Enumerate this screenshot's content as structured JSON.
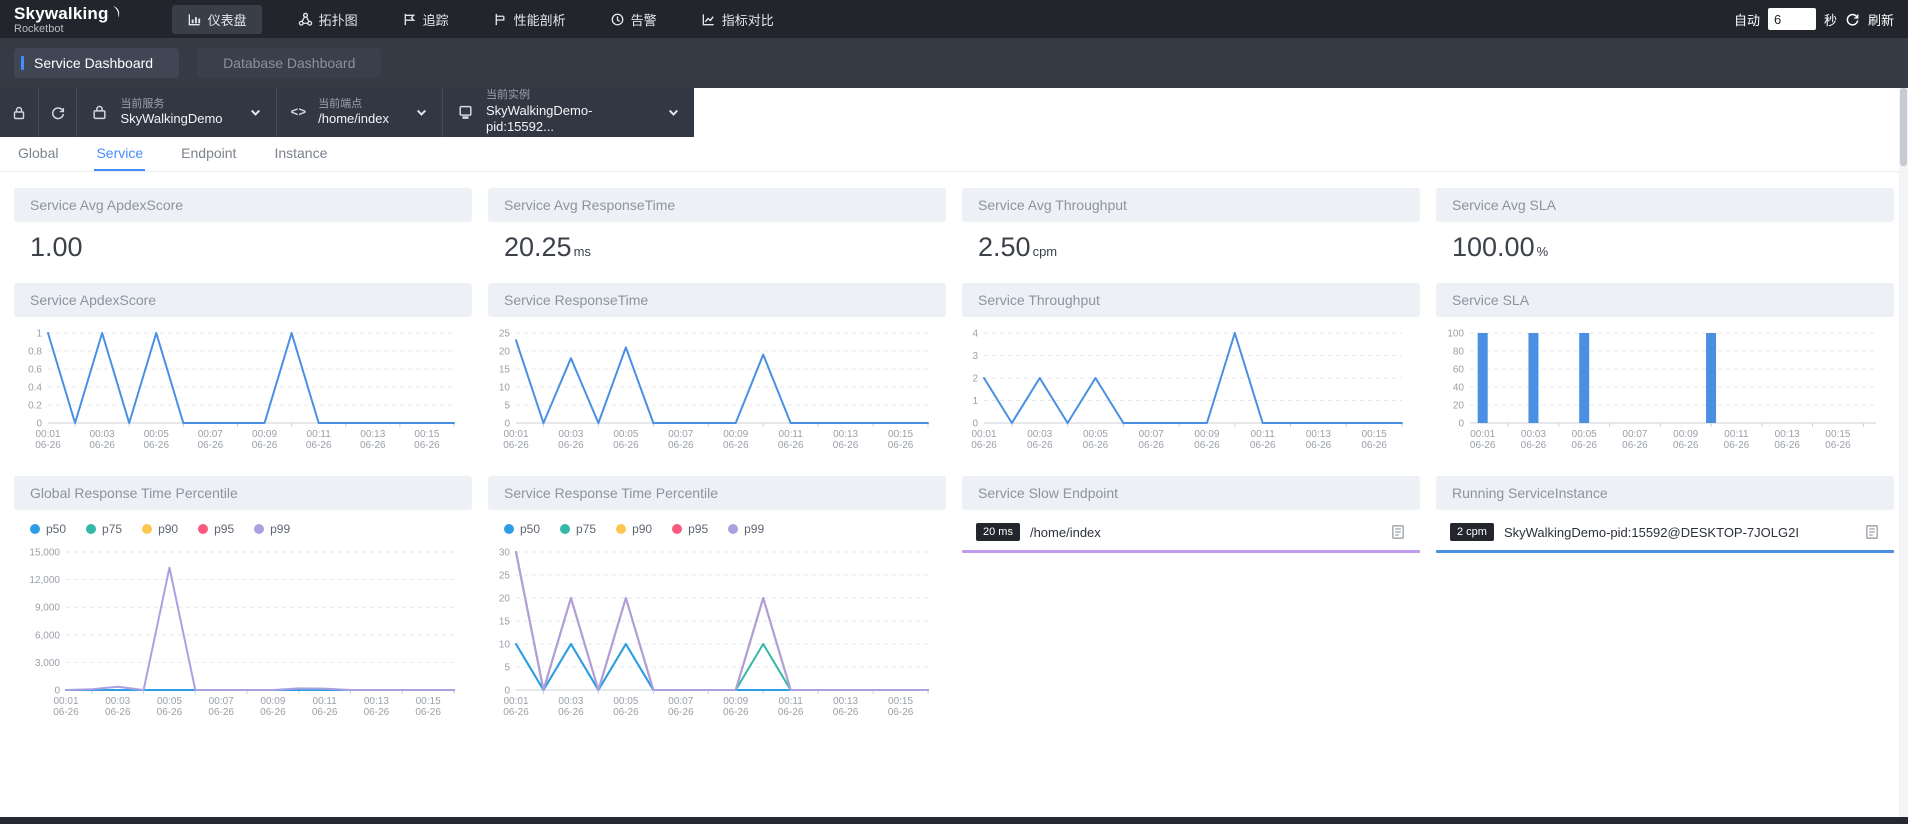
{
  "topbar": {
    "logo": "Skywalking",
    "logo_sub": "Rocketbot",
    "nav": [
      {
        "label": "仪表盘"
      },
      {
        "label": "拓扑图"
      },
      {
        "label": "追踪"
      },
      {
        "label": "性能剖析"
      },
      {
        "label": "告警"
      },
      {
        "label": "指标对比"
      }
    ],
    "auto_label": "自动",
    "refresh_seconds": "6",
    "seconds_label": "秒",
    "refresh_label": "刷新"
  },
  "dashboard_tabs": [
    {
      "label": "Service Dashboard"
    },
    {
      "label": "Database Dashboard"
    }
  ],
  "toolbar": {
    "service_label": "当前服务",
    "service_value": "SkyWalkingDemo",
    "endpoint_label": "当前端点",
    "endpoint_value": "/home/index",
    "instance_label": "当前实例",
    "instance_value": "SkyWalkingDemo-pid:15592...",
    "code_glyph": "<>"
  },
  "view_tabs": [
    {
      "label": "Global"
    },
    {
      "label": "Service"
    },
    {
      "label": "Endpoint"
    },
    {
      "label": "Instance"
    }
  ],
  "metrics": [
    {
      "title": "Service Avg ApdexScore",
      "value": "1.00",
      "unit": ""
    },
    {
      "title": "Service Avg ResponseTime",
      "value": "20.25",
      "unit": "ms"
    },
    {
      "title": "Service Avg Throughput",
      "value": "2.50",
      "unit": "cpm"
    },
    {
      "title": "Service Avg SLA",
      "value": "100.00",
      "unit": "%"
    }
  ],
  "slow_endpoint": {
    "title": "Service Slow Endpoint",
    "badge": "20 ms",
    "name": "/home/index",
    "bar_color": "#bf9bee"
  },
  "running_instance": {
    "title": "Running ServiceInstance",
    "badge": "2 cpm",
    "name": "SkyWalkingDemo-pid:15592@DESKTOP-7JOLG2I",
    "bar_color": "#4a90e2"
  },
  "chart_data": [
    {
      "id": "apdex",
      "type": "line",
      "title": "Service ApdexScore",
      "x": [
        "00:01",
        "00:02",
        "00:03",
        "00:04",
        "00:05",
        "00:06",
        "00:07",
        "00:08",
        "00:09",
        "00:10",
        "00:11",
        "00:12",
        "00:13",
        "00:14",
        "00:15",
        "00:16"
      ],
      "x_date": "06-26",
      "ylim": [
        0,
        1
      ],
      "yticks": [
        0,
        0.2,
        0.4,
        0.6,
        0.8,
        1
      ],
      "grid": "dashed",
      "series": [
        {
          "name": "ApdexScore",
          "color": "#4a90e2",
          "values": [
            1,
            0,
            1,
            0,
            1,
            0,
            0,
            0,
            0,
            1,
            0,
            0,
            0,
            0,
            0,
            0
          ]
        }
      ]
    },
    {
      "id": "response_time",
      "type": "line",
      "title": "Service ResponseTime",
      "x": [
        "00:01",
        "00:02",
        "00:03",
        "00:04",
        "00:05",
        "00:06",
        "00:07",
        "00:08",
        "00:09",
        "00:10",
        "00:11",
        "00:12",
        "00:13",
        "00:14",
        "00:15",
        "00:16"
      ],
      "x_date": "06-26",
      "ylim": [
        0,
        25
      ],
      "yticks": [
        0,
        5,
        10,
        15,
        20,
        25
      ],
      "grid": "dashed",
      "series": [
        {
          "name": "ResponseTime",
          "color": "#4a90e2",
          "values": [
            23,
            0,
            18,
            0,
            21,
            0,
            0,
            0,
            0,
            19,
            0,
            0,
            0,
            0,
            0,
            0
          ]
        }
      ]
    },
    {
      "id": "throughput",
      "type": "line",
      "title": "Service Throughput",
      "x": [
        "00:01",
        "00:02",
        "00:03",
        "00:04",
        "00:05",
        "00:06",
        "00:07",
        "00:08",
        "00:09",
        "00:10",
        "00:11",
        "00:12",
        "00:13",
        "00:14",
        "00:15",
        "00:16"
      ],
      "x_date": "06-26",
      "ylim": [
        0,
        4
      ],
      "yticks": [
        0,
        1,
        2,
        3,
        4
      ],
      "grid": "dashed",
      "series": [
        {
          "name": "Throughput",
          "color": "#4a90e2",
          "values": [
            2,
            0,
            2,
            0,
            2,
            0,
            0,
            0,
            0,
            4,
            0,
            0,
            0,
            0,
            0,
            0
          ]
        }
      ]
    },
    {
      "id": "sla",
      "type": "bar",
      "title": "Service SLA",
      "x": [
        "00:01",
        "00:02",
        "00:03",
        "00:04",
        "00:05",
        "00:06",
        "00:07",
        "00:08",
        "00:09",
        "00:10",
        "00:11",
        "00:12",
        "00:13",
        "00:14",
        "00:15",
        "00:16"
      ],
      "x_date": "06-26",
      "ylim": [
        0,
        100
      ],
      "yticks": [
        0,
        20,
        40,
        60,
        80,
        100
      ],
      "grid": "dashed",
      "series": [
        {
          "name": "SLA",
          "color": "#4a90e2",
          "values": [
            100,
            0,
            100,
            0,
            100,
            0,
            0,
            0,
            0,
            100,
            0,
            0,
            0,
            0,
            0,
            0
          ]
        }
      ]
    },
    {
      "id": "global_percentile",
      "type": "line",
      "title": "Global Response Time Percentile",
      "legend_position": "top-left",
      "x": [
        "00:01",
        "00:02",
        "00:03",
        "00:04",
        "00:05",
        "00:06",
        "00:07",
        "00:08",
        "00:09",
        "00:10",
        "00:11",
        "00:12",
        "00:13",
        "00:14",
        "00:15",
        "00:16"
      ],
      "x_date": "06-26",
      "ylim": [
        0,
        15000
      ],
      "yticks": [
        0,
        3000,
        6000,
        9000,
        12000,
        15000
      ],
      "grid": "dashed",
      "draw_order": [
        "p90",
        "p95",
        "p75",
        "p50",
        "p99"
      ],
      "series": [
        {
          "name": "p50",
          "color": "#2d9de5",
          "values": [
            0,
            0,
            0,
            0,
            0,
            0,
            0,
            0,
            0,
            0,
            0,
            0,
            0,
            0,
            0,
            0
          ]
        },
        {
          "name": "p75",
          "color": "#35b8a5",
          "values": [
            0,
            0,
            0,
            0,
            0,
            0,
            0,
            0,
            0,
            0,
            0,
            0,
            0,
            0,
            0,
            0
          ]
        },
        {
          "name": "p90",
          "color": "#fbc750",
          "values": [
            0,
            0,
            0,
            0,
            0,
            0,
            0,
            0,
            0,
            0,
            0,
            0,
            0,
            0,
            0,
            0
          ]
        },
        {
          "name": "p95",
          "color": "#f9597c",
          "values": [
            0,
            0,
            0,
            0,
            0,
            0,
            0,
            0,
            0,
            0,
            0,
            0,
            0,
            0,
            0,
            0
          ]
        },
        {
          "name": "p99",
          "color": "#a9a2e0",
          "values": [
            0,
            80,
            350,
            0,
            13300,
            0,
            0,
            0,
            0,
            180,
            150,
            0,
            0,
            0,
            0,
            0
          ]
        }
      ]
    },
    {
      "id": "service_percentile",
      "type": "line",
      "title": "Service Response Time Percentile",
      "legend_position": "top-left",
      "x": [
        "00:01",
        "00:02",
        "00:03",
        "00:04",
        "00:05",
        "00:06",
        "00:07",
        "00:08",
        "00:09",
        "00:10",
        "00:11",
        "00:12",
        "00:13",
        "00:14",
        "00:15",
        "00:16"
      ],
      "x_date": "06-26",
      "ylim": [
        0,
        30
      ],
      "yticks": [
        0,
        5,
        10,
        15,
        20,
        25,
        30
      ],
      "grid": "dashed",
      "draw_order": [
        "p90",
        "p95",
        "p75",
        "p50",
        "p99"
      ],
      "series": [
        {
          "name": "p50",
          "color": "#2d9de5",
          "values": [
            10,
            0,
            10,
            0,
            10,
            0,
            0,
            0,
            0,
            0,
            0,
            0,
            0,
            0,
            0,
            0
          ]
        },
        {
          "name": "p75",
          "color": "#35b8a5",
          "values": [
            10,
            0,
            10,
            0,
            10,
            0,
            0,
            0,
            0,
            10,
            0,
            0,
            0,
            0,
            0,
            0
          ]
        },
        {
          "name": "p90",
          "color": "#fbc750",
          "values": [
            30,
            0,
            20,
            0,
            20,
            0,
            0,
            0,
            0,
            20,
            0,
            0,
            0,
            0,
            0,
            0
          ]
        },
        {
          "name": "p95",
          "color": "#f9597c",
          "values": [
            30,
            0,
            20,
            0,
            20,
            0,
            0,
            0,
            0,
            20,
            0,
            0,
            0,
            0,
            0,
            0
          ]
        },
        {
          "name": "p99",
          "color": "#a9a2e0",
          "values": [
            30,
            0,
            20,
            0,
            20,
            0,
            0,
            0,
            0,
            20,
            0,
            0,
            0,
            0,
            0,
            0
          ]
        }
      ]
    }
  ]
}
